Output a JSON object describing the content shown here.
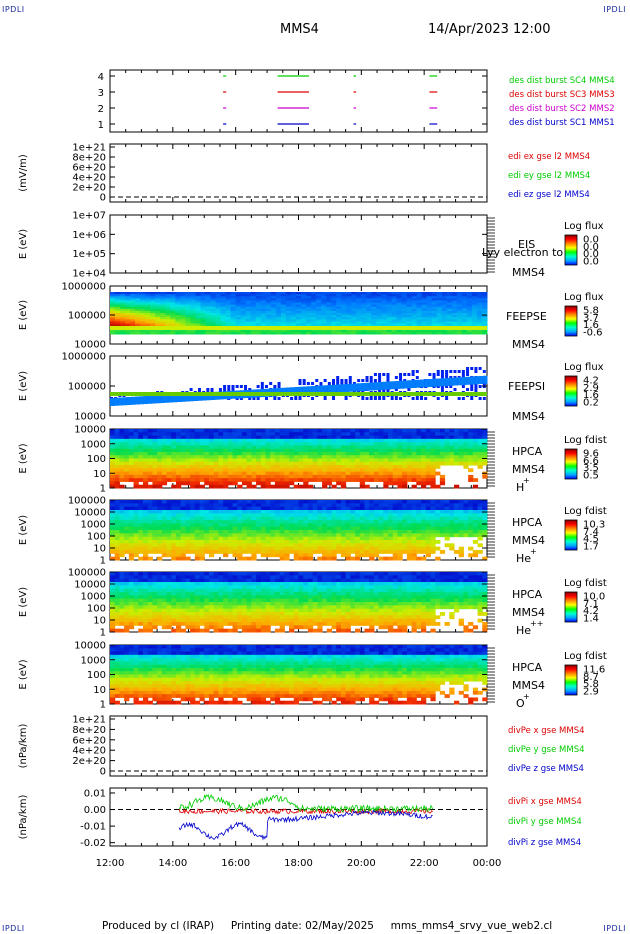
{
  "header": {
    "corner_label": "IPDLI",
    "spacecraft": "MMS4",
    "datetime": "14/Apr/2023 12:00"
  },
  "footer": {
    "produced_by": "Produced by cl (IRAP)",
    "printing_date": "Printing date: 02/May/2025",
    "script_name": "mms_mms4_srvy_vue_web2.cl"
  },
  "colors": {
    "red": "#dd0000",
    "green": "#00cc00",
    "blue": "#0000cc",
    "magenta": "#cc00cc"
  },
  "chart_data": [
    {
      "type": "line",
      "panel": "burst",
      "ylim": [
        0.5,
        4.5
      ],
      "ticks": [
        "1",
        "2",
        "3",
        "4"
      ],
      "xlim": [
        "12:00",
        "00:00"
      ],
      "series": [
        {
          "name": "des dist burst SC1 MMS1",
          "color": "#0000cc",
          "y": 1,
          "intervals": [
            [
              "15:36",
              "15:42"
            ],
            [
              "17:20",
              "18:20"
            ],
            [
              "19:45",
              "19:50"
            ],
            [
              "22:10",
              "22:25"
            ]
          ]
        },
        {
          "name": "des dist burst SC2 MMS2",
          "color": "#cc00cc",
          "y": 2,
          "intervals": [
            [
              "15:36",
              "15:42"
            ],
            [
              "17:20",
              "18:20"
            ],
            [
              "19:45",
              "19:50"
            ],
            [
              "22:10",
              "22:25"
            ]
          ]
        },
        {
          "name": "des dist burst SC3 MMS3",
          "color": "#dd0000",
          "y": 3,
          "intervals": [
            [
              "15:36",
              "15:42"
            ],
            [
              "17:20",
              "18:20"
            ],
            [
              "19:45",
              "19:50"
            ],
            [
              "22:10",
              "22:25"
            ]
          ]
        },
        {
          "name": "des dist burst SC4 MMS4",
          "color": "#00cc00",
          "y": 4,
          "intervals": [
            [
              "15:36",
              "15:42"
            ],
            [
              "17:20",
              "18:20"
            ],
            [
              "19:45",
              "19:50"
            ],
            [
              "22:10",
              "22:25"
            ]
          ]
        }
      ]
    },
    {
      "type": "line",
      "panel": "edi",
      "ylabel": "(mV/m)",
      "ticks": [
        "0",
        "2e+20",
        "4e+20",
        "6e+20",
        "8e+20",
        "1e+21"
      ],
      "series": [
        {
          "name": "edi ex gse l2 MMS4",
          "color": "#dd0000"
        },
        {
          "name": "edi ey gse l2 MMS4",
          "color": "#00cc00"
        },
        {
          "name": "edi ez gse l2 MMS4",
          "color": "#0000cc"
        }
      ]
    },
    {
      "type": "heatmap",
      "panel": "eis",
      "ylabel": "E (eV)",
      "ticks": [
        "1e+04",
        "1e+05",
        "1e+06",
        "1e+07"
      ],
      "labels": [
        "EIS",
        "MMS4"
      ],
      "overlay_text": "Lyy electron to",
      "colorbar": {
        "title": "Log flux",
        "ticks": [
          "0.0",
          "0.0",
          "0.0",
          "0.0"
        ]
      }
    },
    {
      "type": "heatmap",
      "panel": "feeps_e",
      "ylabel": "E (eV)",
      "ticks": [
        "10000",
        "100000",
        "1000000"
      ],
      "labels": [
        "FEEPSE",
        "MMS4"
      ],
      "colorbar": {
        "title": "Log flux",
        "ticks": [
          "5.8",
          "3.7",
          "1.6",
          "-0.6"
        ]
      }
    },
    {
      "type": "heatmap",
      "panel": "feeps_i",
      "ylabel": "E (eV)",
      "ticks": [
        "10000",
        "100000",
        "1000000"
      ],
      "labels": [
        "FEEPSI",
        "MMS4"
      ],
      "colorbar": {
        "title": "Log flux",
        "ticks": [
          "4.2",
          "2.9",
          "1.6",
          "0.2"
        ]
      }
    },
    {
      "type": "heatmap",
      "panel": "hpca_h",
      "ylabel": "E (eV)",
      "ticks": [
        "1",
        "10",
        "100",
        "1000",
        "10000"
      ],
      "labels": [
        "HPCA",
        "MMS4",
        "H",
        "+"
      ],
      "colorbar": {
        "title": "Log fdist",
        "ticks": [
          "9.6",
          "6.6",
          "3.5",
          "0.5"
        ]
      }
    },
    {
      "type": "heatmap",
      "panel": "hpca_he",
      "ylabel": "E (eV)",
      "ticks": [
        "1",
        "10",
        "100",
        "1000",
        "10000",
        "100000"
      ],
      "labels": [
        "HPCA",
        "MMS4",
        "He",
        "+"
      ],
      "colorbar": {
        "title": "Log fdist",
        "ticks": [
          "10.3",
          "7.4",
          "4.5",
          "1.7"
        ]
      }
    },
    {
      "type": "heatmap",
      "panel": "hpca_hepp",
      "ylabel": "E (eV)",
      "ticks": [
        "1",
        "10",
        "100",
        "1000",
        "10000",
        "100000"
      ],
      "labels": [
        "HPCA",
        "MMS4",
        "He",
        "++"
      ],
      "colorbar": {
        "title": "Log fdist",
        "ticks": [
          "10.0",
          "7.1",
          "4.2",
          "1.4"
        ]
      }
    },
    {
      "type": "heatmap",
      "panel": "hpca_o",
      "ylabel": "E (eV)",
      "ticks": [
        "1",
        "10",
        "100",
        "1000",
        "10000"
      ],
      "labels": [
        "HPCA",
        "MMS4",
        "O",
        "+"
      ],
      "colorbar": {
        "title": "Log fdist",
        "ticks": [
          "11.6",
          "8.7",
          "5.8",
          "2.9"
        ]
      }
    },
    {
      "type": "line",
      "panel": "divpe",
      "ylabel": "(nPa/km)",
      "ticks": [
        "0",
        "2e+20",
        "4e+20",
        "6e+20",
        "8e+20",
        "1e+21"
      ],
      "series": [
        {
          "name": "divPe x gse MMS4",
          "color": "#dd0000"
        },
        {
          "name": "divPe y gse MMS4",
          "color": "#00cc00"
        },
        {
          "name": "divPe z gse MMS4",
          "color": "#0000cc"
        }
      ]
    },
    {
      "type": "line",
      "panel": "divpi",
      "ylabel": "(nPa/km)",
      "ylim": [
        -0.022,
        0.013
      ],
      "ticks": [
        "-0.02",
        "-0.01",
        "0.00",
        "0.01"
      ],
      "series": [
        {
          "name": "divPi x gse MMS4",
          "color": "#dd0000"
        },
        {
          "name": "divPi y gse MMS4",
          "color": "#00cc00"
        },
        {
          "name": "divPi z gse MMS4",
          "color": "#0000cc"
        }
      ]
    }
  ],
  "xaxis": {
    "ticks": [
      "12:00",
      "14:00",
      "16:00",
      "18:00",
      "20:00",
      "22:00",
      "00:00"
    ]
  }
}
